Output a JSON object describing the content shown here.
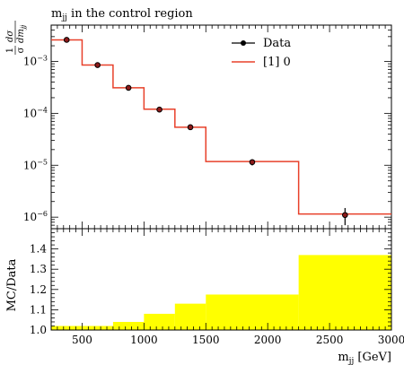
{
  "chart_data": [
    {
      "type": "line",
      "panel": "main",
      "title": "m_jj in the control region",
      "title_main": "m",
      "title_sub": "jj",
      "title_rest": " in the control region",
      "ylabel": "1/σ dσ/dm_jj",
      "yscale": "log",
      "xlim": [
        250,
        3000
      ],
      "ylim": [
        6e-07,
        0.005
      ],
      "yticks": [
        {
          "value": 0.001,
          "mantissa": "10",
          "exponent": "−3"
        },
        {
          "value": 0.0001,
          "mantissa": "10",
          "exponent": "−4"
        },
        {
          "value": 1e-05,
          "mantissa": "10",
          "exponent": "−5"
        },
        {
          "value": 1e-06,
          "mantissa": "10",
          "exponent": "−6"
        }
      ],
      "legend_position": "top-right",
      "series": [
        {
          "name": "Data",
          "style": "points-with-errors",
          "color": "#000000",
          "marker_fill": "#8b1a1a",
          "points": [
            {
              "x": 375,
              "y": 0.0026,
              "yerr": 0.00012
            },
            {
              "x": 625,
              "y": 0.00085,
              "yerr": 4e-05
            },
            {
              "x": 875,
              "y": 0.00031,
              "yerr": 1.5e-05
            },
            {
              "x": 1125,
              "y": 0.000118,
              "yerr": 7e-06
            },
            {
              "x": 1375,
              "y": 5.4e-05,
              "yerr": 4e-06
            },
            {
              "x": 1875,
              "y": 1.15e-05,
              "yerr": 1.6e-06
            },
            {
              "x": 2625,
              "y": 1.1e-06,
              "yerr": 4e-07
            }
          ]
        },
        {
          "name": "[1] 0",
          "style": "step",
          "color": "#e8402a",
          "bins": [
            {
              "lo": 250,
              "hi": 500,
              "y": 0.0026
            },
            {
              "lo": 500,
              "hi": 750,
              "y": 0.00085
            },
            {
              "lo": 750,
              "hi": 1000,
              "y": 0.00031
            },
            {
              "lo": 1000,
              "hi": 1250,
              "y": 0.00012
            },
            {
              "lo": 1250,
              "hi": 1500,
              "y": 5.4e-05
            },
            {
              "lo": 1500,
              "hi": 2250,
              "y": 1.18e-05
            },
            {
              "lo": 2250,
              "hi": 3000,
              "y": 1.15e-06
            }
          ]
        }
      ]
    },
    {
      "type": "bar",
      "panel": "ratio",
      "ylabel": "MC/Data",
      "xlabel": "m_jj [GeV]",
      "xlabel_main": "m",
      "xlabel_sub": "jj",
      "xlabel_rest": " [GeV]",
      "xlim": [
        250,
        3000
      ],
      "ylim": [
        1.0,
        1.5
      ],
      "yticks": [
        "1.0",
        "1.1",
        "1.2",
        "1.3",
        "1.4"
      ],
      "xticks": [
        "500",
        "1000",
        "1500",
        "2000",
        "2500",
        "3000"
      ],
      "band_color": "#ffff00",
      "bins": [
        {
          "lo": 250,
          "hi": 500,
          "y": 1.02
        },
        {
          "lo": 500,
          "hi": 750,
          "y": 1.02
        },
        {
          "lo": 750,
          "hi": 1000,
          "y": 1.04
        },
        {
          "lo": 1000,
          "hi": 1250,
          "y": 1.08
        },
        {
          "lo": 1250,
          "hi": 1500,
          "y": 1.13
        },
        {
          "lo": 1500,
          "hi": 2250,
          "y": 1.175
        },
        {
          "lo": 2250,
          "hi": 3000,
          "y": 1.37
        }
      ]
    }
  ]
}
